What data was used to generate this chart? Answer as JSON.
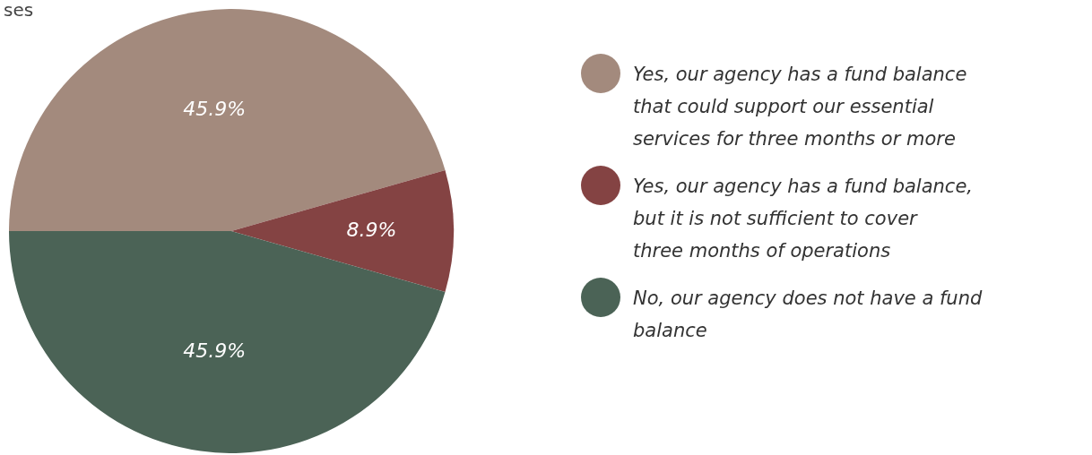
{
  "chart_data": {
    "type": "pie",
    "annotations": [
      "ses"
    ],
    "categories": [
      "Yes, our agency has a fund balance that could support our essential services for three months or more",
      "Yes, our agency has a fund balance, but it is not sufficient to cover three months of operations",
      "No, our agency does not have a fund balance"
    ],
    "values": [
      45.9,
      8.9,
      45.9
    ],
    "colors": [
      "#a38a7d",
      "#844343",
      "#4b6356"
    ],
    "value_labels": [
      "45.9%",
      "8.9%",
      "45.9%"
    ],
    "legend": "right"
  }
}
